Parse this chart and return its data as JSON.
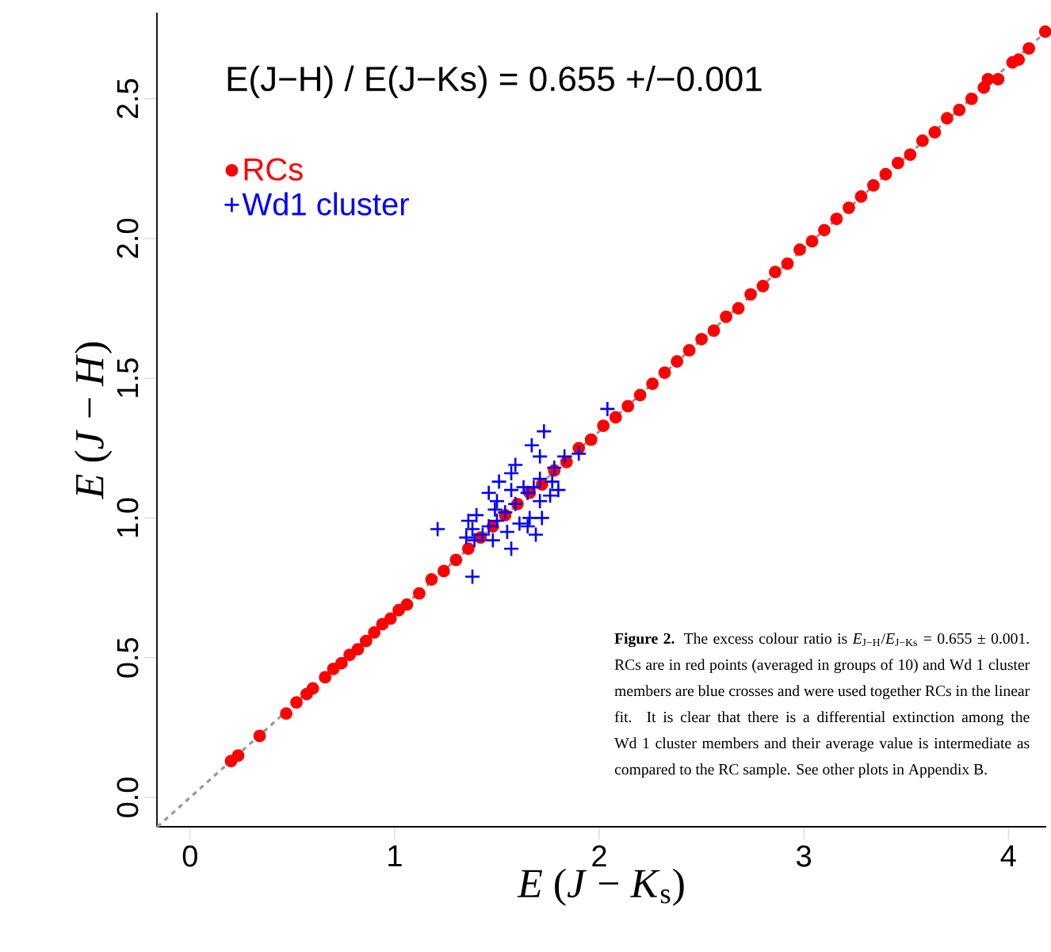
{
  "chart_data": {
    "type": "scatter",
    "xlabel": "*E* (*J* − *K*$_{s}$)",
    "ylabel": "*E* (*J* − *H*)",
    "xlim": [
      -0.162,
      4.185
    ],
    "ylim": [
      -0.105,
      2.808
    ],
    "xticks": [
      0,
      1,
      2,
      3,
      4
    ],
    "yticks": [
      {
        "value": 0,
        "label": "0.0"
      },
      {
        "value": 0.5,
        "label": "0.5"
      },
      {
        "value": 1,
        "label": "1.0"
      },
      {
        "value": 1.5,
        "label": "1.5"
      },
      {
        "value": 2,
        "label": "2.0"
      },
      {
        "value": 2.5,
        "label": "2.5"
      }
    ],
    "legend": "top left",
    "grid": false,
    "series": [
      {
        "name": "RCs",
        "color": "#ff0000",
        "marker": "circle",
        "x": [
          0.2,
          0.235,
          0.34,
          0.47,
          0.52,
          0.57,
          0.6,
          0.66,
          0.7,
          0.74,
          0.78,
          0.82,
          0.86,
          0.9,
          0.94,
          0.98,
          1.02,
          1.06,
          1.12,
          1.18,
          1.24,
          1.3,
          1.36,
          1.42,
          1.48,
          1.54,
          1.6,
          1.66,
          1.72,
          1.78,
          1.84,
          1.9,
          1.96,
          2.02,
          2.08,
          2.14,
          2.2,
          2.26,
          2.32,
          2.38,
          2.44,
          2.5,
          2.56,
          2.62,
          2.68,
          2.74,
          2.8,
          2.86,
          2.92,
          2.98,
          3.04,
          3.1,
          3.16,
          3.22,
          3.28,
          3.34,
          3.4,
          3.46,
          3.52,
          3.58,
          3.64,
          3.7,
          3.76,
          3.82,
          3.88,
          3.9,
          3.95,
          4.02,
          4.05,
          4.1,
          4.18
        ],
        "values": [
          0.13,
          0.15,
          0.22,
          0.3,
          0.34,
          0.37,
          0.39,
          0.43,
          0.46,
          0.48,
          0.51,
          0.53,
          0.56,
          0.59,
          0.62,
          0.64,
          0.67,
          0.69,
          0.73,
          0.78,
          0.81,
          0.85,
          0.89,
          0.93,
          0.97,
          1.01,
          1.05,
          1.09,
          1.12,
          1.17,
          1.2,
          1.25,
          1.28,
          1.33,
          1.36,
          1.4,
          1.44,
          1.48,
          1.52,
          1.56,
          1.6,
          1.64,
          1.67,
          1.72,
          1.75,
          1.8,
          1.83,
          1.88,
          1.91,
          1.96,
          1.99,
          2.03,
          2.07,
          2.11,
          2.15,
          2.19,
          2.23,
          2.27,
          2.3,
          2.35,
          2.38,
          2.43,
          2.46,
          2.5,
          2.54,
          2.57,
          2.57,
          2.63,
          2.64,
          2.68,
          2.74
        ]
      },
      {
        "name": "Wd1 cluster",
        "color": "#0000ff",
        "marker": "cross",
        "x": [
          2.04,
          1.73,
          1.67,
          1.9,
          1.83,
          1.71,
          1.59,
          1.78,
          1.57,
          1.51,
          1.71,
          1.77,
          1.63,
          1.68,
          1.8,
          1.57,
          1.76,
          1.46,
          1.65,
          1.71,
          1.5,
          1.59,
          1.49,
          1.54,
          1.72,
          1.66,
          1.4,
          1.5,
          1.61,
          1.36,
          1.46,
          1.38,
          1.21,
          1.55,
          1.65,
          1.43,
          1.35,
          1.69,
          1.39,
          1.48,
          1.57,
          1.38
        ],
        "values": [
          1.39,
          1.31,
          1.26,
          1.23,
          1.22,
          1.22,
          1.19,
          1.18,
          1.16,
          1.13,
          1.14,
          1.13,
          1.11,
          1.11,
          1.1,
          1.1,
          1.08,
          1.09,
          1.09,
          1.06,
          1.06,
          1.05,
          1.03,
          1.02,
          1.0,
          1.0,
          1.01,
          0.99,
          0.98,
          0.99,
          0.97,
          0.96,
          0.96,
          0.95,
          0.97,
          0.94,
          0.93,
          0.94,
          0.92,
          0.92,
          0.89,
          0.79
        ]
      },
      {
        "type": "line",
        "color": "#999999",
        "line_style": "dashed",
        "x": [
          -0.16,
          4.185
        ],
        "values": [
          -0.105,
          2.741
        ]
      }
    ],
    "annotations": [
      "E(J−H) / E(J−Ks) = 0.655 +/−0.001",
      "**Figure 2.** The excess colour ratio is *E*$_{J−H}$/*E*$_{J−Ks}$ = 0.655 ± 0.001. RCs are in red points (averaged in groups of 10) and Wd 1 cluster members are blue crosses and were used together RCs in the linear fit. It is clear that there is a differential extinction among the Wd 1 cluster members and their average value is intermediate as compared to the RC sample. See other plots in Appendix B."
    ]
  }
}
